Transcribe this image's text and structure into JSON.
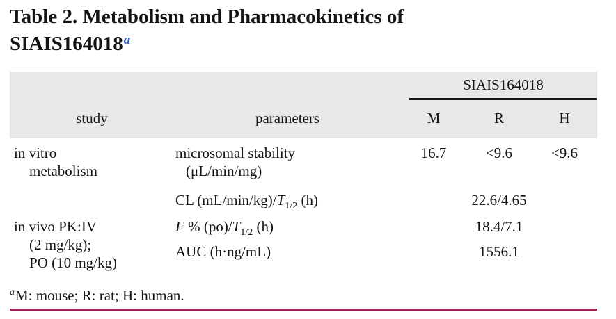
{
  "title": {
    "line1": "Table 2. Metabolism and Pharmacokinetics of",
    "line2": "SIAIS164018",
    "sup": "a"
  },
  "table": {
    "group_header": "SIAIS164018",
    "col_study": "study",
    "col_parameters": "parameters",
    "col_m": "M",
    "col_r": "R",
    "col_h": "H",
    "row1": {
      "study_line1": "in vitro",
      "study_line2": "metabolism",
      "param_line1": "microsomal stability",
      "param_line2": "(μL/min/mg)",
      "val_m": "16.7",
      "val_r": "<9.6",
      "val_h": "<9.6"
    },
    "row2": {
      "param_prefix": "CL (mL/min/kg)/",
      "param_t": "T",
      "param_sub": "1/2",
      "param_suffix": " (h)",
      "value": "22.6/4.65"
    },
    "row3": {
      "study_line1": "in vivo PK:IV",
      "study_line2": "(2 mg/kg);",
      "study_line3": "PO (10 mg/kg)",
      "param_f": "F",
      "param_mid": " % (po)/",
      "param_t": "T",
      "param_sub": "1/2",
      "param_suffix": " (h)",
      "value": "18.4/7.1"
    },
    "row4": {
      "param": "AUC (h·ng/mL)",
      "value": "1556.1"
    }
  },
  "footnote": {
    "sup": "a",
    "text": "M: mouse; R: rat; H: human."
  },
  "colors": {
    "header_band": "#e8e8e8",
    "header_rule": "#1a1a1a",
    "bottom_rule": "#9c2352",
    "title_sup_blue": "#2e5cc5"
  }
}
